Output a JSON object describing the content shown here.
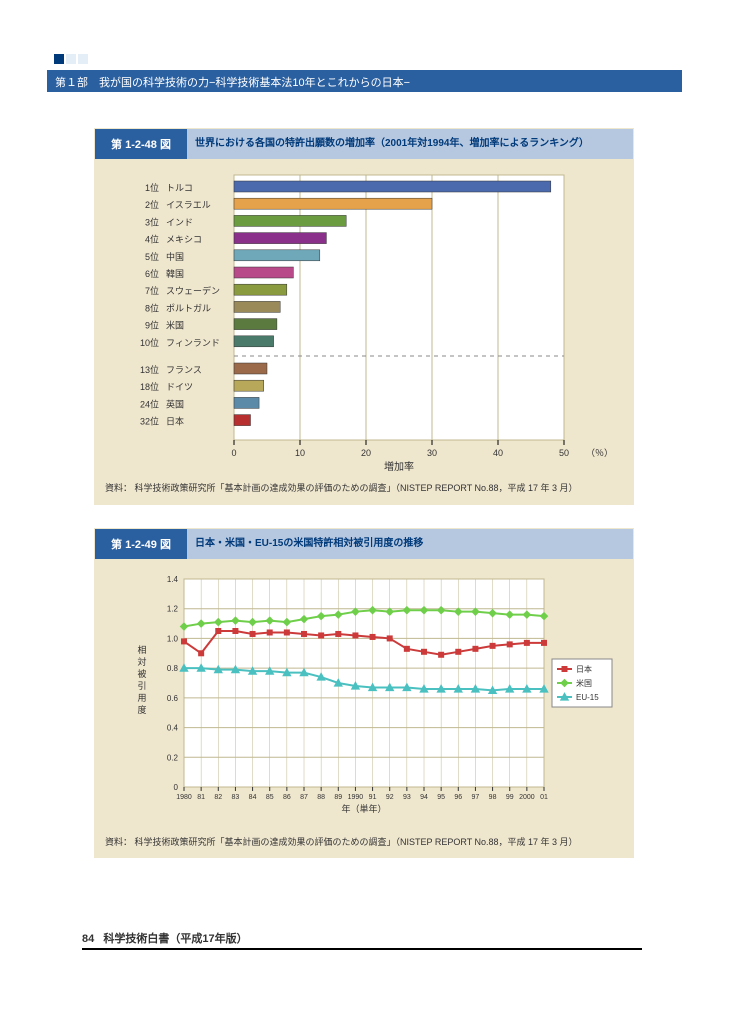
{
  "header": {
    "breadcrumb": "第１部　我が国の科学技術の力−科学技術基本法10年とこれからの日本−"
  },
  "figure1": {
    "type": "bar",
    "number": "第 1-2-48 図",
    "title": "世界における各国の特許出願数の増加率（2001年対1994年、増加率によるランキング）",
    "background_color": "#efe6ce",
    "plot_bg": "#ffffff",
    "grid_color": "#c0b890",
    "xlabel": "増加率",
    "xunit": "（％）",
    "xlim": [
      0,
      50
    ],
    "xtick_step": 10,
    "xticks": [
      "0",
      "10",
      "20",
      "30",
      "40",
      "50"
    ],
    "bars": [
      {
        "rank": "1位",
        "label": "トルコ",
        "value": 48,
        "color": "#4a6aad"
      },
      {
        "rank": "2位",
        "label": "イスラエル",
        "value": 30,
        "color": "#e6a24a"
      },
      {
        "rank": "3位",
        "label": "インド",
        "value": 17,
        "color": "#6b9c3f"
      },
      {
        "rank": "4位",
        "label": "メキシコ",
        "value": 14,
        "color": "#8a2f8a"
      },
      {
        "rank": "5位",
        "label": "中国",
        "value": 13,
        "color": "#6fa8b8"
      },
      {
        "rank": "6位",
        "label": "韓国",
        "value": 9,
        "color": "#b84a8a"
      },
      {
        "rank": "7位",
        "label": "スウェーデン",
        "value": 8,
        "color": "#8a9a3f"
      },
      {
        "rank": "8位",
        "label": "ポルトガル",
        "value": 7,
        "color": "#9a8a5a"
      },
      {
        "rank": "9位",
        "label": "米国",
        "value": 6.5,
        "color": "#5a7a3f"
      },
      {
        "rank": "10位",
        "label": "フィンランド",
        "value": 6,
        "color": "#4a7a6a"
      },
      {
        "gap": true
      },
      {
        "rank": "13位",
        "label": "フランス",
        "value": 5,
        "color": "#9a6a4a"
      },
      {
        "rank": "18位",
        "label": "ドイツ",
        "value": 4.5,
        "color": "#b8a85a"
      },
      {
        "rank": "24位",
        "label": "英国",
        "value": 3.8,
        "color": "#5a8aa8"
      },
      {
        "rank": "32位",
        "label": "日本",
        "value": 2.5,
        "color": "#b82f2f"
      }
    ],
    "source": "資料：  科学技術政策研究所「基本計画の達成効果の評価のための調査」（NISTEP REPORT No.88，平成 17 年 3 月）"
  },
  "figure2": {
    "type": "line",
    "number": "第 1-2-49 図",
    "title": "日本・米国・EU-15の米国特許相対被引用度の推移",
    "background_color": "#efe6ce",
    "plot_bg": "#ffffff",
    "grid_color": "#c0b890",
    "ylabel": "相対被引用度",
    "xlabel": "年（単年）",
    "ylim": [
      0,
      1.4
    ],
    "ytick_step": 0.2,
    "yticks": [
      "0",
      "0.2",
      "0.4",
      "0.6",
      "0.8",
      "1.0",
      "1.2",
      "1.4"
    ],
    "xticks": [
      "1980",
      "81",
      "82",
      "83",
      "84",
      "85",
      "86",
      "87",
      "88",
      "89",
      "1990",
      "91",
      "92",
      "93",
      "94",
      "95",
      "96",
      "97",
      "98",
      "99",
      "2000",
      "01"
    ],
    "series": [
      {
        "name": "日本",
        "legend": "日本",
        "color": "#cc3a3a",
        "marker": "square",
        "marker_size": 5,
        "line_width": 2,
        "values": [
          0.98,
          0.9,
          1.05,
          1.05,
          1.03,
          1.04,
          1.04,
          1.03,
          1.02,
          1.03,
          1.02,
          1.01,
          1.0,
          0.93,
          0.91,
          0.89,
          0.91,
          0.93,
          0.95,
          0.96,
          0.97,
          0.97
        ]
      },
      {
        "name": "米国",
        "legend": "米国",
        "color": "#6fcf4a",
        "marker": "diamond",
        "marker_size": 5,
        "line_width": 2,
        "values": [
          1.08,
          1.1,
          1.11,
          1.12,
          1.11,
          1.12,
          1.11,
          1.13,
          1.15,
          1.16,
          1.18,
          1.19,
          1.18,
          1.19,
          1.19,
          1.19,
          1.18,
          1.18,
          1.17,
          1.16,
          1.16,
          1.15
        ]
      },
      {
        "name": "EU-15",
        "legend": "EU-15",
        "color": "#4ac0c0",
        "marker": "triangle",
        "marker_size": 5,
        "line_width": 2,
        "values": [
          0.8,
          0.8,
          0.79,
          0.79,
          0.78,
          0.78,
          0.77,
          0.77,
          0.74,
          0.7,
          0.68,
          0.67,
          0.67,
          0.67,
          0.66,
          0.66,
          0.66,
          0.66,
          0.65,
          0.66,
          0.66,
          0.66
        ]
      }
    ],
    "source": "資料：  科学技術政策研究所「基本計画の達成効果の評価のための調査」（NISTEP REPORT No.88，平成 17 年 3 月）"
  },
  "footer": {
    "page": "84",
    "book": "科学技術白書（平成17年版）"
  }
}
